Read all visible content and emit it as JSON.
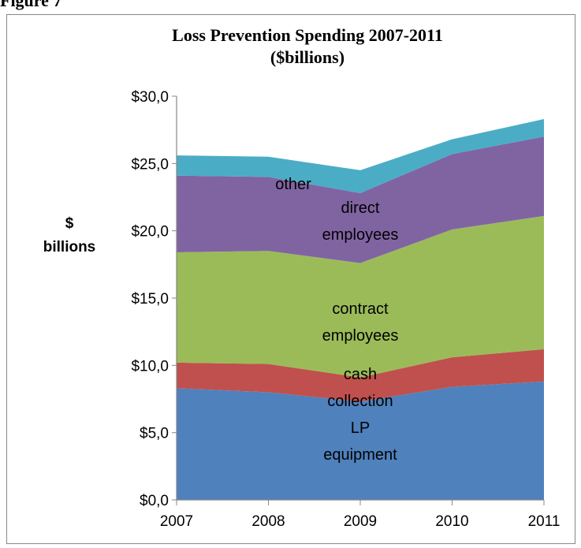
{
  "figure_label": "Figure 7",
  "chart_data": {
    "type": "area",
    "stacked": true,
    "title": "Loss Prevention Spending 2007-2011",
    "subtitle": "($billions)",
    "ylabel": [
      "$",
      "billions"
    ],
    "xlabel": "",
    "categories": [
      "2007",
      "2008",
      "2009",
      "2010",
      "2011"
    ],
    "ylim": [
      0,
      30
    ],
    "yticks": [
      0,
      5,
      10,
      15,
      20,
      25,
      30
    ],
    "ytick_labels": [
      "$0,0",
      "$5,0",
      "$10,0",
      "$15,0",
      "$20,0",
      "$25,0",
      "$30,0"
    ],
    "grid": false,
    "legend": "none",
    "series": [
      {
        "name": "LP equipment",
        "label_lines": [
          "LP",
          "equipment"
        ],
        "color": "#4f81bd",
        "values": [
          8.3,
          8.0,
          7.3,
          8.4,
          8.8
        ]
      },
      {
        "name": "cash collection",
        "label_lines": [
          "cash",
          "collection"
        ],
        "color": "#c0504d",
        "values": [
          1.9,
          2.1,
          1.8,
          2.2,
          2.4
        ]
      },
      {
        "name": "contract employees",
        "label_lines": [
          "contract",
          "employees"
        ],
        "color": "#9bbb59",
        "values": [
          8.2,
          8.4,
          8.5,
          9.5,
          9.9
        ]
      },
      {
        "name": "direct employees",
        "label_lines": [
          "direct",
          "employees"
        ],
        "color": "#8064a2",
        "values": [
          5.7,
          5.5,
          5.2,
          5.6,
          5.9
        ]
      },
      {
        "name": "other",
        "label_lines": [
          "other"
        ],
        "color": "#4bacc6",
        "values": [
          1.5,
          1.5,
          1.7,
          1.1,
          1.3
        ]
      }
    ]
  }
}
